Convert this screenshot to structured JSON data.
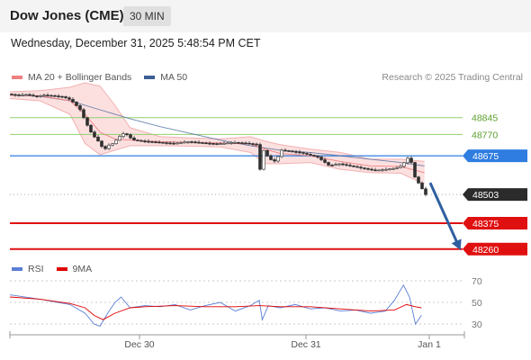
{
  "header": {
    "title": "Dow Jones (CME)",
    "interval": "30 MIN",
    "datetime": "Wednesday, December 31, 2025 5:48:54 PM CET"
  },
  "legend": {
    "main": [
      {
        "name": "MA 20 + Bollinger Bands",
        "color": "#f08080"
      },
      {
        "name": "MA 50",
        "color": "#3a5f95"
      }
    ],
    "rsi": [
      {
        "name": "RSI",
        "color": "#5b7fd6"
      },
      {
        "name": "9MA",
        "color": "#e00000"
      }
    ]
  },
  "credit": "Research © 2025 Trading Central",
  "chart_data": {
    "type": "candlestick",
    "x_ticks": [
      "Dec 30",
      "Dec 31",
      "Jan 1"
    ],
    "price_axis": {
      "ylim": [
        48215,
        49000
      ]
    },
    "levels": [
      {
        "label": "48845",
        "value": 48845,
        "color": "#90d070",
        "kind": "resistance"
      },
      {
        "label": "48770",
        "value": 48770,
        "color": "#90d070",
        "kind": "resistance"
      },
      {
        "label": "48675",
        "value": 48675,
        "color": "#2f7de0",
        "kind": "pivot"
      },
      {
        "label": "48503",
        "value": 48503,
        "color": "#2b2b2b",
        "kind": "last-price"
      },
      {
        "label": "48375",
        "value": 48375,
        "color": "#e01010",
        "kind": "support"
      },
      {
        "label": "48260",
        "value": 48260,
        "color": "#e01010",
        "kind": "support"
      }
    ],
    "price_path": [
      [
        0,
        48950
      ],
      [
        6,
        48945
      ],
      [
        12,
        48948
      ],
      [
        18,
        48940
      ],
      [
        24,
        48945
      ],
      [
        30,
        48942
      ],
      [
        36,
        48938
      ],
      [
        40,
        48930
      ],
      [
        44,
        48910
      ],
      [
        48,
        48880
      ],
      [
        52,
        48820
      ],
      [
        56,
        48770
      ],
      [
        60,
        48740
      ],
      [
        64,
        48700
      ],
      [
        66,
        48720
      ],
      [
        70,
        48730
      ],
      [
        74,
        48760
      ],
      [
        78,
        48780
      ],
      [
        80,
        48760
      ],
      [
        84,
        48745
      ],
      [
        90,
        48740
      ],
      [
        100,
        48735
      ],
      [
        110,
        48730
      ],
      [
        120,
        48738
      ],
      [
        130,
        48732
      ],
      [
        140,
        48728
      ],
      [
        150,
        48735
      ],
      [
        160,
        48730
      ],
      [
        166,
        48725
      ],
      [
        168,
        48600
      ],
      [
        170,
        48700
      ],
      [
        174,
        48660
      ],
      [
        178,
        48650
      ],
      [
        182,
        48700
      ],
      [
        188,
        48695
      ],
      [
        194,
        48690
      ],
      [
        200,
        48680
      ],
      [
        206,
        48670
      ],
      [
        210,
        48650
      ],
      [
        214,
        48630
      ],
      [
        220,
        48640
      ],
      [
        228,
        48630
      ],
      [
        236,
        48620
      ],
      [
        244,
        48610
      ],
      [
        252,
        48615
      ],
      [
        258,
        48620
      ],
      [
        262,
        48630
      ],
      [
        266,
        48665
      ],
      [
        268,
        48660
      ],
      [
        270,
        48590
      ],
      [
        274,
        48545
      ],
      [
        278,
        48503
      ]
    ],
    "ma50_path": [
      [
        0,
        48945
      ],
      [
        20,
        48940
      ],
      [
        40,
        48920
      ],
      [
        60,
        48880
      ],
      [
        80,
        48840
      ],
      [
        100,
        48805
      ],
      [
        120,
        48775
      ],
      [
        140,
        48745
      ],
      [
        160,
        48720
      ],
      [
        180,
        48700
      ],
      [
        200,
        48690
      ],
      [
        220,
        48675
      ],
      [
        240,
        48660
      ],
      [
        260,
        48645
      ],
      [
        276,
        48630
      ]
    ],
    "ma20_path": [
      [
        0,
        48945
      ],
      [
        20,
        48942
      ],
      [
        40,
        48920
      ],
      [
        50,
        48860
      ],
      [
        60,
        48780
      ],
      [
        70,
        48750
      ],
      [
        80,
        48745
      ],
      [
        100,
        48738
      ],
      [
        120,
        48735
      ],
      [
        140,
        48732
      ],
      [
        160,
        48728
      ],
      [
        170,
        48705
      ],
      [
        180,
        48685
      ],
      [
        200,
        48675
      ],
      [
        220,
        48650
      ],
      [
        240,
        48630
      ],
      [
        260,
        48628
      ],
      [
        276,
        48600
      ]
    ],
    "bollinger_upper_path": [
      [
        0,
        48960
      ],
      [
        20,
        48965
      ],
      [
        40,
        48980
      ],
      [
        50,
        49000
      ],
      [
        60,
        48985
      ],
      [
        70,
        48900
      ],
      [
        80,
        48800
      ],
      [
        100,
        48760
      ],
      [
        120,
        48755
      ],
      [
        140,
        48750
      ],
      [
        160,
        48760
      ],
      [
        170,
        48740
      ],
      [
        180,
        48725
      ],
      [
        200,
        48705
      ],
      [
        220,
        48690
      ],
      [
        240,
        48660
      ],
      [
        260,
        48660
      ],
      [
        276,
        48650
      ]
    ],
    "bollinger_lower_path": [
      [
        0,
        48930
      ],
      [
        20,
        48920
      ],
      [
        40,
        48860
      ],
      [
        50,
        48730
      ],
      [
        60,
        48680
      ],
      [
        70,
        48700
      ],
      [
        80,
        48720
      ],
      [
        100,
        48720
      ],
      [
        120,
        48718
      ],
      [
        140,
        48715
      ],
      [
        160,
        48690
      ],
      [
        170,
        48640
      ],
      [
        180,
        48640
      ],
      [
        200,
        48645
      ],
      [
        220,
        48615
      ],
      [
        240,
        48600
      ],
      [
        260,
        48598
      ],
      [
        276,
        48550
      ]
    ],
    "forecast_arrow": {
      "from": 48555,
      "to": 48270
    },
    "rsi": {
      "ylim": [
        20,
        75
      ],
      "levels": [
        70,
        50,
        30
      ],
      "rsi_path": [
        [
          0,
          57
        ],
        [
          20,
          53
        ],
        [
          40,
          48
        ],
        [
          50,
          40
        ],
        [
          56,
          30
        ],
        [
          60,
          28
        ],
        [
          66,
          42
        ],
        [
          70,
          50
        ],
        [
          74,
          55
        ],
        [
          80,
          45
        ],
        [
          90,
          47
        ],
        [
          100,
          46
        ],
        [
          110,
          48
        ],
        [
          120,
          43
        ],
        [
          130,
          47
        ],
        [
          140,
          50
        ],
        [
          150,
          42
        ],
        [
          160,
          47
        ],
        [
          166,
          52
        ],
        [
          168,
          34
        ],
        [
          172,
          47
        ],
        [
          180,
          45
        ],
        [
          190,
          48
        ],
        [
          200,
          44
        ],
        [
          210,
          45
        ],
        [
          220,
          42
        ],
        [
          230,
          43
        ],
        [
          240,
          40
        ],
        [
          250,
          42
        ],
        [
          256,
          52
        ],
        [
          262,
          66
        ],
        [
          266,
          55
        ],
        [
          270,
          30
        ],
        [
          274,
          38
        ]
      ],
      "ma9_path": [
        [
          0,
          55
        ],
        [
          20,
          53
        ],
        [
          40,
          49
        ],
        [
          50,
          45
        ],
        [
          56,
          38
        ],
        [
          62,
          34
        ],
        [
          70,
          40
        ],
        [
          80,
          45
        ],
        [
          90,
          46
        ],
        [
          110,
          47
        ],
        [
          130,
          46
        ],
        [
          150,
          46
        ],
        [
          166,
          47
        ],
        [
          180,
          46
        ],
        [
          200,
          46
        ],
        [
          220,
          44
        ],
        [
          240,
          42
        ],
        [
          256,
          43
        ],
        [
          264,
          48
        ],
        [
          270,
          46
        ],
        [
          274,
          45
        ]
      ]
    }
  }
}
